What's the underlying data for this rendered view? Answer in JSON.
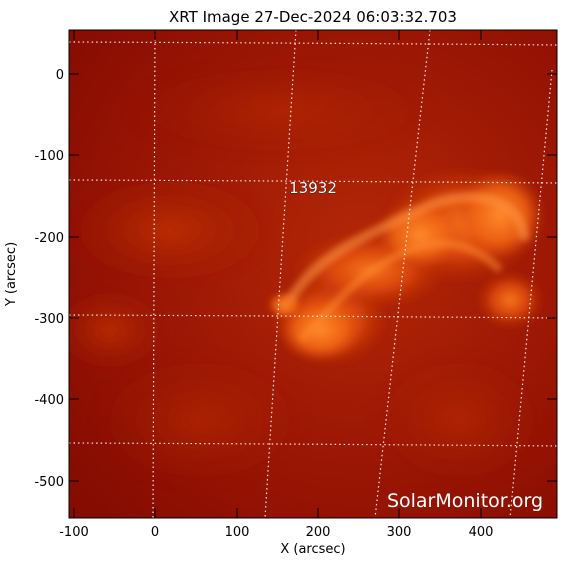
{
  "title": "XRT Image 27-Dec-2024 06:03:32.703",
  "xaxis": {
    "label": "X (arcsec)",
    "ticks": [
      "-100",
      "0",
      "100",
      "200",
      "300",
      "400"
    ]
  },
  "yaxis": {
    "label": "Y (arcsec)",
    "ticks": [
      "0",
      "-100",
      "-200",
      "-300",
      "-400",
      "-500"
    ]
  },
  "active_region_label": "13932",
  "watermark": "SolarMonitor.org",
  "colors": {
    "background": "#8e0e00",
    "bright": "#f26a14",
    "grid": "#ffffff"
  }
}
